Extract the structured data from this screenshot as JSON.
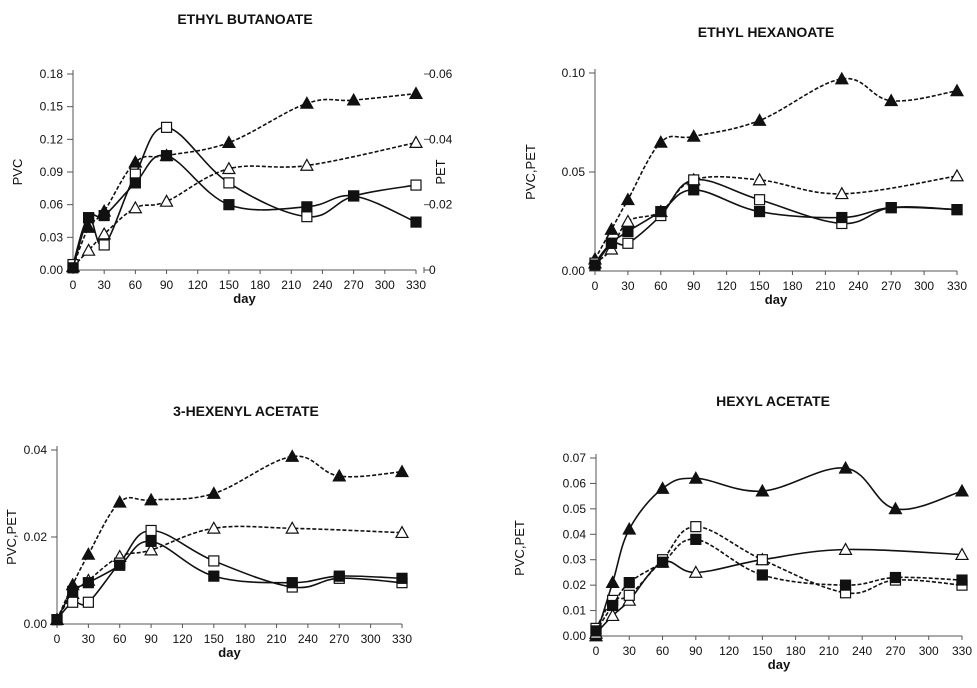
{
  "chart_data": [
    {
      "type": "line",
      "title": "ETHYL BUTANOATE",
      "xlabel": "day",
      "ylabel": "PVC",
      "y2label": "PET",
      "xlim": [
        0,
        330
      ],
      "ylim": [
        0,
        0.18
      ],
      "y2lim": [
        0,
        0.06
      ],
      "x_ticks": [
        "0",
        "30",
        "60",
        "90",
        "120",
        "150",
        "180",
        "210",
        "240",
        "270",
        "300",
        "330"
      ],
      "y_ticks": [
        "0.00",
        "0.03",
        "0.06",
        "0.09",
        "0.12",
        "0.15",
        "0.18"
      ],
      "y2_ticks": [
        "0",
        "0.02",
        "0.04",
        "0.06"
      ],
      "series": [
        {
          "marker": "filled-triangle",
          "line": "dashed",
          "axis": "right",
          "x": [
            0,
            15,
            30,
            60,
            90,
            150,
            225,
            270,
            330
          ],
          "values": [
            0.001,
            0.013,
            0.018,
            0.033,
            0.035,
            0.039,
            0.051,
            0.052,
            0.054
          ]
        },
        {
          "marker": "open-triangle",
          "line": "dashed",
          "axis": "right",
          "x": [
            0,
            15,
            30,
            60,
            90,
            150,
            225,
            330
          ],
          "values": [
            0.001,
            0.006,
            0.011,
            0.019,
            0.021,
            0.031,
            0.032,
            0.039
          ]
        },
        {
          "marker": "open-square",
          "line": "solid",
          "axis": "left",
          "x": [
            0,
            15,
            30,
            60,
            90,
            150,
            225,
            270,
            330
          ],
          "values": [
            0.005,
            0.048,
            0.023,
            0.088,
            0.131,
            0.08,
            0.049,
            0.068,
            0.078
          ]
        },
        {
          "marker": "filled-square",
          "line": "solid",
          "axis": "left",
          "x": [
            0,
            15,
            30,
            60,
            90,
            150,
            225,
            270,
            330
          ],
          "values": [
            0.002,
            0.048,
            0.05,
            0.08,
            0.105,
            0.06,
            0.058,
            0.068,
            0.044
          ]
        }
      ]
    },
    {
      "type": "line",
      "title": "ETHYL HEXANOATE",
      "xlabel": "day",
      "ylabel": "PVC,PET",
      "xlim": [
        0,
        330
      ],
      "ylim": [
        0,
        0.1
      ],
      "x_ticks": [
        "0",
        "30",
        "60",
        "90",
        "120",
        "150",
        "180",
        "210",
        "240",
        "270",
        "300",
        "330"
      ],
      "y_ticks": [
        "0.00",
        "0.05",
        "0.10"
      ],
      "series": [
        {
          "marker": "filled-triangle",
          "line": "dashed",
          "x": [
            0,
            15,
            30,
            60,
            90,
            150,
            225,
            270,
            330
          ],
          "values": [
            0.006,
            0.021,
            0.036,
            0.065,
            0.068,
            0.076,
            0.097,
            0.086,
            0.091
          ]
        },
        {
          "marker": "open-triangle",
          "line": "dashed",
          "x": [
            0,
            15,
            30,
            60,
            90,
            150,
            225,
            330
          ],
          "values": [
            0.004,
            0.011,
            0.025,
            0.03,
            0.046,
            0.046,
            0.039,
            0.048
          ]
        },
        {
          "marker": "open-square",
          "line": "solid",
          "x": [
            0,
            15,
            30,
            60,
            90,
            150,
            225,
            270,
            330
          ],
          "values": [
            0.004,
            0.014,
            0.014,
            0.028,
            0.046,
            0.036,
            0.024,
            0.032,
            0.031
          ]
        },
        {
          "marker": "filled-square",
          "line": "solid",
          "x": [
            0,
            15,
            30,
            60,
            90,
            150,
            225,
            270,
            330
          ],
          "values": [
            0.003,
            0.014,
            0.02,
            0.03,
            0.041,
            0.03,
            0.027,
            0.032,
            0.031
          ]
        }
      ]
    },
    {
      "type": "line",
      "title": "3-HEXENYL ACETATE",
      "xlabel": "day",
      "ylabel": "PVC,PET",
      "xlim": [
        0,
        330
      ],
      "ylim": [
        0,
        0.04
      ],
      "x_ticks": [
        "0",
        "30",
        "60",
        "90",
        "120",
        "150",
        "180",
        "210",
        "240",
        "270",
        "300",
        "330"
      ],
      "y_ticks": [
        "0.00",
        "0.02",
        "0.04"
      ],
      "series": [
        {
          "marker": "filled-triangle",
          "line": "dashed",
          "x": [
            0,
            15,
            30,
            60,
            90,
            150,
            225,
            270,
            330
          ],
          "values": [
            0.001,
            0.009,
            0.016,
            0.028,
            0.0285,
            0.03,
            0.0385,
            0.034,
            0.035
          ]
        },
        {
          "marker": "open-triangle",
          "line": "dashed",
          "x": [
            0,
            15,
            30,
            60,
            90,
            150,
            225,
            330
          ],
          "values": [
            0.001,
            0.007,
            0.01,
            0.0155,
            0.017,
            0.022,
            0.022,
            0.021
          ]
        },
        {
          "marker": "open-square",
          "line": "solid",
          "x": [
            0,
            15,
            30,
            60,
            90,
            150,
            225,
            270,
            330
          ],
          "values": [
            0.001,
            0.005,
            0.005,
            0.014,
            0.0215,
            0.0145,
            0.0085,
            0.0105,
            0.0095
          ]
        },
        {
          "marker": "filled-square",
          "line": "solid",
          "x": [
            0,
            15,
            30,
            60,
            90,
            150,
            225,
            270,
            330
          ],
          "values": [
            0.001,
            0.0075,
            0.0095,
            0.0135,
            0.019,
            0.011,
            0.0095,
            0.011,
            0.0105
          ]
        }
      ]
    },
    {
      "type": "line",
      "title": "HEXYL ACETATE",
      "xlabel": "day",
      "ylabel": "PVC,PET",
      "xlim": [
        0,
        330
      ],
      "ylim": [
        0,
        0.07
      ],
      "x_ticks": [
        "0",
        "30",
        "60",
        "90",
        "120",
        "150",
        "180",
        "210",
        "240",
        "270",
        "300",
        "330"
      ],
      "y_ticks": [
        "0.00",
        "0.01",
        "0.02",
        "0.03",
        "0.04",
        "0.05",
        "0.06",
        "0.07"
      ],
      "series": [
        {
          "marker": "filled-triangle",
          "line": "solid",
          "x": [
            0,
            15,
            30,
            60,
            90,
            150,
            225,
            270,
            330
          ],
          "values": [
            0.0,
            0.021,
            0.042,
            0.058,
            0.062,
            0.057,
            0.066,
            0.05,
            0.057
          ]
        },
        {
          "marker": "open-triangle",
          "line": "solid",
          "x": [
            0,
            15,
            30,
            60,
            90,
            150,
            225,
            330
          ],
          "values": [
            0.001,
            0.008,
            0.014,
            0.029,
            0.025,
            0.03,
            0.034,
            0.032
          ]
        },
        {
          "marker": "open-square",
          "line": "dashed",
          "x": [
            0,
            15,
            30,
            60,
            90,
            150,
            225,
            270,
            330
          ],
          "values": [
            0.003,
            0.014,
            0.016,
            0.03,
            0.043,
            0.03,
            0.017,
            0.022,
            0.02
          ]
        },
        {
          "marker": "filled-square",
          "line": "dashed",
          "x": [
            0,
            15,
            30,
            60,
            90,
            150,
            225,
            270,
            330
          ],
          "values": [
            0.002,
            0.012,
            0.021,
            0.029,
            0.038,
            0.024,
            0.02,
            0.023,
            0.022
          ]
        }
      ]
    }
  ]
}
